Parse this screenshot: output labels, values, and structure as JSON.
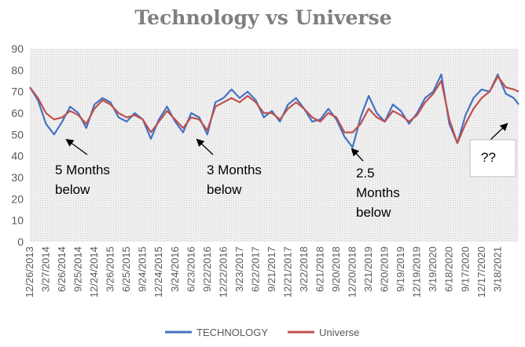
{
  "chart_data": {
    "type": "line",
    "title": "Technology vs Universe",
    "xlabel": "",
    "ylabel": "",
    "ylim": [
      0,
      90
    ],
    "yticks": [
      0,
      10,
      20,
      30,
      40,
      50,
      60,
      70,
      80,
      90
    ],
    "grid": false,
    "legend_position": "bottom-center",
    "x_tick_labels": [
      "12/26/2013",
      "3/27/2014",
      "6/26/2014",
      "9/25/2014",
      "12/24/2014",
      "3/26/2015",
      "6/25/2015",
      "9/24/2015",
      "12/24/2015",
      "3/24/2016",
      "6/23/2016",
      "9/22/2016",
      "12/22/2016",
      "3/23/2017",
      "6/22/2017",
      "9/21/2017",
      "12/21/2017",
      "3/22/2018",
      "6/21/2018",
      "9/20/2018",
      "12/20/2018",
      "3/21/2019",
      "6/20/2019",
      "9/19/2019",
      "12/19/2019",
      "3/19/2020",
      "6/18/2020",
      "9/17/2020",
      "12/17/2020",
      "3/18/2021"
    ],
    "x": [
      0,
      0.5,
      1,
      1.5,
      2,
      2.5,
      3,
      3.5,
      4,
      4.5,
      5,
      5.5,
      6,
      6.5,
      7,
      7.5,
      8,
      8.5,
      9,
      9.5,
      10,
      10.5,
      11,
      11.5,
      12,
      12.5,
      13,
      13.5,
      14,
      14.5,
      15,
      15.5,
      16,
      16.5,
      17,
      17.5,
      18,
      18.5,
      19,
      19.5,
      20,
      20.5,
      21,
      21.5,
      22,
      22.5,
      23,
      23.5,
      24,
      24.5,
      25,
      25.5,
      26,
      26.5,
      27,
      27.5,
      28,
      28.5,
      29,
      29.5,
      30,
      30.3
    ],
    "series": [
      {
        "name": "TECHNOLOGY",
        "color": "#4472c4",
        "values": [
          72,
          66,
          55,
          50,
          56,
          63,
          60,
          53,
          64,
          67,
          65,
          58,
          56,
          60,
          57,
          48,
          57,
          63,
          56,
          51,
          60,
          58,
          50,
          65,
          67,
          71,
          67,
          70,
          66,
          58,
          61,
          56,
          64,
          67,
          62,
          56,
          57,
          62,
          57,
          49,
          44,
          58,
          68,
          60,
          56,
          64,
          61,
          55,
          60,
          67,
          70,
          78,
          55,
          46,
          59,
          67,
          71,
          70,
          78,
          69,
          67,
          64
        ]
      },
      {
        "name": "Universe",
        "color": "#c0504d",
        "values": [
          72,
          67,
          60,
          57,
          58,
          61,
          59,
          55,
          62,
          66,
          64,
          60,
          58,
          59,
          57,
          51,
          56,
          61,
          57,
          53,
          58,
          57,
          52,
          63,
          65,
          67,
          65,
          68,
          65,
          60,
          60,
          57,
          62,
          65,
          62,
          58,
          56,
          60,
          58,
          51,
          51,
          55,
          62,
          58,
          56,
          61,
          59,
          56,
          59,
          65,
          69,
          75,
          57,
          46,
          55,
          62,
          67,
          70,
          77,
          72,
          71,
          70
        ]
      }
    ],
    "annotations": [
      {
        "text_lines": [
          "5 Months",
          "below"
        ]
      },
      {
        "text_lines": [
          "3 Months",
          "below"
        ]
      },
      {
        "text_lines": [
          "2.5",
          "Months",
          "below"
        ]
      },
      {
        "text_lines": [
          "??"
        ]
      }
    ]
  }
}
